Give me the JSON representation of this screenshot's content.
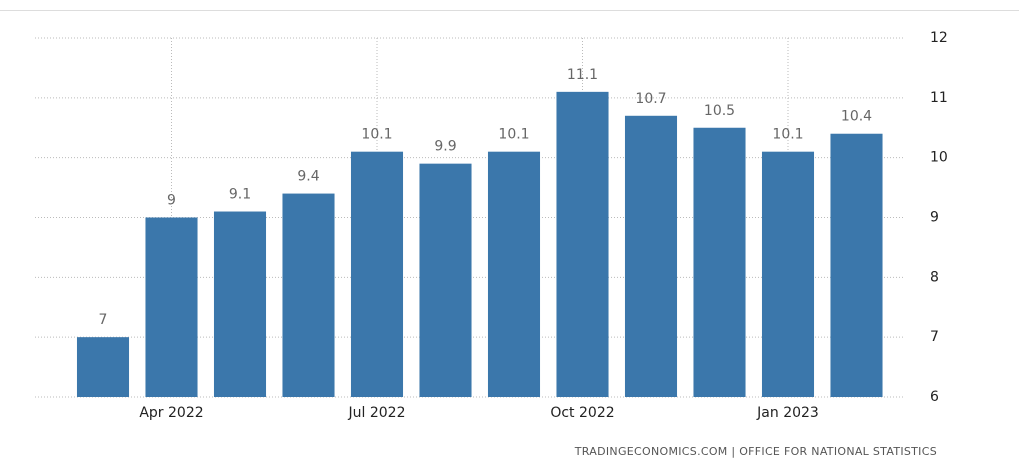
{
  "chart_data": {
    "type": "bar",
    "categories": [
      null,
      "Apr 2022",
      null,
      null,
      "Jul 2022",
      null,
      null,
      "Oct 2022",
      null,
      null,
      "Jan 2023",
      null
    ],
    "values": [
      7,
      9,
      9.1,
      9.4,
      10.1,
      9.9,
      10.1,
      11.1,
      10.7,
      10.5,
      10.1,
      10.4
    ],
    "color": "#3b77ab",
    "ylim": [
      6,
      12
    ],
    "yticks": [
      6,
      7,
      8,
      9,
      10,
      11,
      12
    ],
    "grid": true,
    "source": "TRADINGECONOMICS.COM | OFFICE FOR NATIONAL STATISTICS"
  }
}
